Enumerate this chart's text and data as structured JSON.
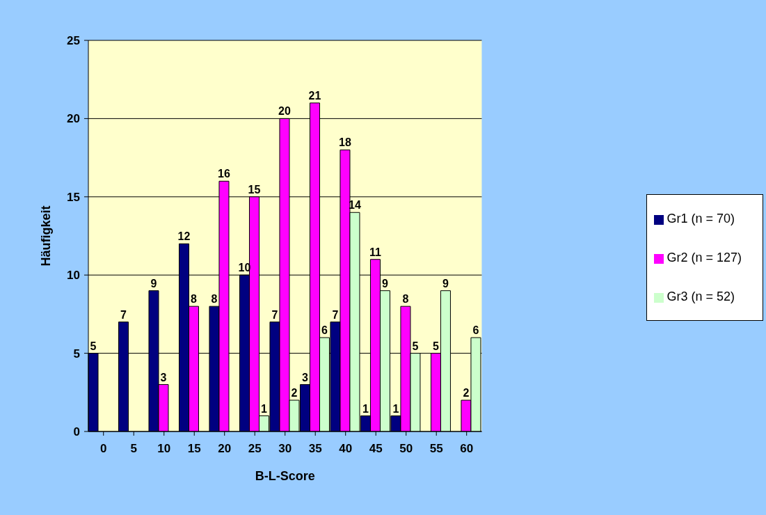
{
  "chart_data": {
    "type": "bar",
    "xlabel": "B-L-Score",
    "ylabel": "Häufigkeit",
    "categories": [
      "0",
      "5",
      "10",
      "15",
      "20",
      "25",
      "30",
      "35",
      "40",
      "45",
      "50",
      "55",
      "60"
    ],
    "series": [
      {
        "name": "Gr1 (n = 70)",
        "color": "#000080",
        "values": [
          5,
          7,
          9,
          12,
          8,
          10,
          7,
          3,
          7,
          1,
          1,
          null,
          null
        ]
      },
      {
        "name": "Gr2 (n = 127)",
        "color": "#ff00ff",
        "values": [
          null,
          null,
          3,
          8,
          16,
          15,
          20,
          21,
          18,
          11,
          8,
          5,
          2
        ]
      },
      {
        "name": "Gr3 (n = 52)",
        "color": "#ccffcc",
        "values": [
          null,
          null,
          null,
          null,
          null,
          1,
          2,
          6,
          14,
          9,
          5,
          9,
          6
        ]
      }
    ],
    "ylim": [
      0,
      25
    ],
    "yticks": [
      0,
      5,
      10,
      15,
      20,
      25
    ],
    "grid": "y",
    "legend": "right",
    "data_labels": true
  }
}
